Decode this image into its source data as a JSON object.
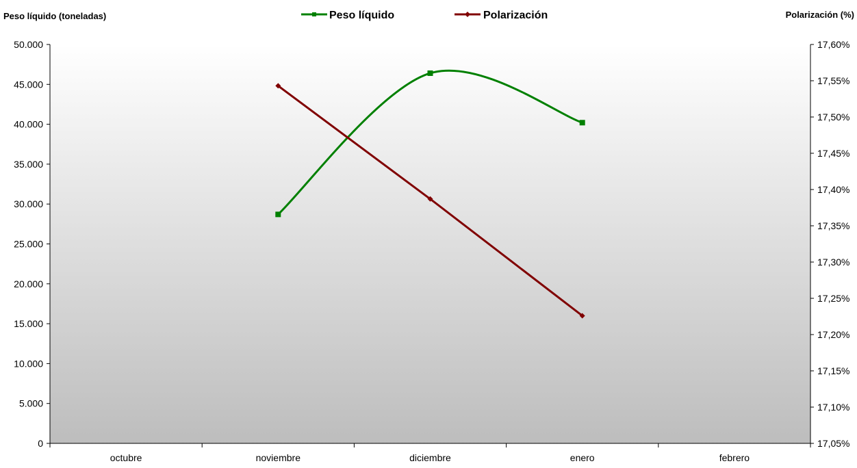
{
  "chart_data": {
    "type": "line",
    "categories": [
      "octubre",
      "noviembre",
      "diciembre",
      "enero",
      "febrero"
    ],
    "y_left": {
      "label": "Peso líquido (toneladas)",
      "range": [
        0,
        50000
      ],
      "ticks": [
        "0",
        "5.000",
        "10.000",
        "15.000",
        "20.000",
        "25.000",
        "30.000",
        "35.000",
        "40.000",
        "45.000",
        "50.000"
      ]
    },
    "y_right": {
      "label": "Polarización (%)",
      "range": [
        17.05,
        17.6
      ],
      "ticks": [
        "17,05%",
        "17,10%",
        "17,15%",
        "17,20%",
        "17,25%",
        "17,30%",
        "17,35%",
        "17,40%",
        "17,45%",
        "17,50%",
        "17,55%",
        "17,60%"
      ]
    },
    "series": [
      {
        "name": "Peso líquido",
        "axis": "left",
        "color": "#008000",
        "marker": "square",
        "smooth": true,
        "values": [
          null,
          28700,
          46400,
          40200,
          null
        ]
      },
      {
        "name": "Polarización",
        "axis": "right",
        "color": "#800000",
        "marker": "diamond",
        "smooth": false,
        "values": [
          null,
          17.543,
          17.387,
          17.226,
          null
        ]
      }
    ],
    "legend_position": "top-center",
    "grid": false,
    "background": "gradient-white-to-gray"
  }
}
